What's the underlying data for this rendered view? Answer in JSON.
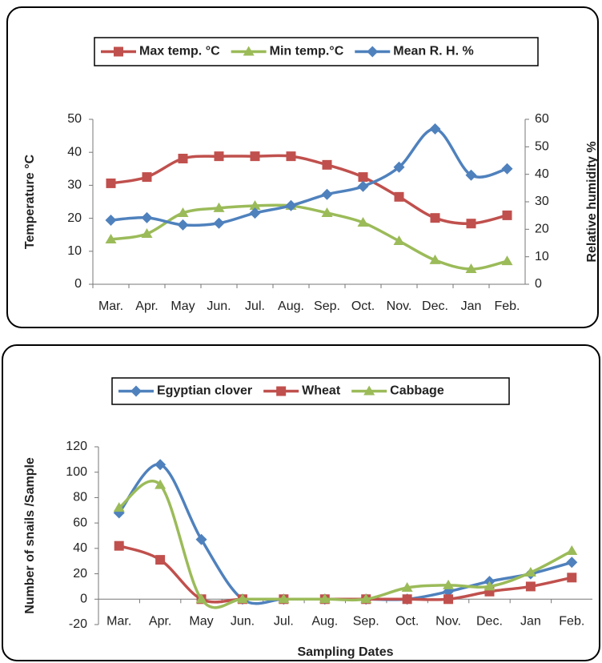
{
  "chart_data": [
    {
      "type": "line",
      "categories": [
        "Mar.",
        "Apr.",
        "May",
        "Jun.",
        "Jul.",
        "Aug.",
        "Sep.",
        "Oct.",
        "Nov.",
        "Dec.",
        "Jan",
        "Feb."
      ],
      "y_label": "Temperature  °C",
      "y2_label": "Relative humidity %",
      "ylim": [
        0,
        50
      ],
      "yticks": [
        0,
        10,
        20,
        30,
        40,
        50
      ],
      "y2lim": [
        0,
        60
      ],
      "y2ticks": [
        0,
        10,
        20,
        30,
        40,
        50,
        60
      ],
      "series": [
        {
          "name": "Max temp. °C",
          "color": "#c0504d",
          "marker": "square",
          "values": [
            30.6,
            32.5,
            38.1,
            38.8,
            38.8,
            38.8,
            36.2,
            32.5,
            26.5,
            20.1,
            18.4,
            20.9
          ]
        },
        {
          "name": "Min temp.°C",
          "color": "#9bbb59",
          "marker": "triangle",
          "values": [
            13.6,
            15.3,
            21.6,
            23.1,
            23.8,
            23.8,
            21.6,
            18.7,
            13.1,
            7.3,
            4.6,
            7.0
          ]
        },
        {
          "name": "Mean R. H. %",
          "color": "#4f81bd",
          "marker": "diamond",
          "axis": "y2",
          "values": [
            23.3,
            24.2,
            21.6,
            22.2,
            25.9,
            28.6,
            32.7,
            35.6,
            42.6,
            56.5,
            39.7,
            42.0
          ]
        }
      ]
    },
    {
      "type": "line",
      "categories": [
        "Mar.",
        "Apr.",
        "May",
        "Jun.",
        "Jul.",
        "Aug.",
        "Sep.",
        "Oct.",
        "Nov.",
        "Dec.",
        "Jan",
        "Feb."
      ],
      "x_label": "Sampling Dates",
      "y_label": "Number of snails /Sample",
      "ylim": [
        -20,
        120
      ],
      "yticks": [
        -20,
        0,
        20,
        40,
        60,
        80,
        100,
        120
      ],
      "series": [
        {
          "name": "Egyptian clover",
          "color": "#4f81bd",
          "marker": "diamond",
          "values": [
            68,
            106,
            47,
            0,
            0,
            0,
            0,
            0,
            6,
            14,
            20,
            29
          ]
        },
        {
          "name": "Wheat",
          "color": "#c0504d",
          "marker": "square",
          "values": [
            42,
            31,
            0,
            0,
            0,
            0,
            0,
            0,
            0,
            6,
            10,
            17
          ]
        },
        {
          "name": "Cabbage",
          "color": "#9bbb59",
          "marker": "triangle",
          "values": [
            72,
            90,
            0,
            0,
            0,
            0,
            0,
            9,
            11,
            10,
            21,
            38
          ]
        }
      ]
    }
  ]
}
